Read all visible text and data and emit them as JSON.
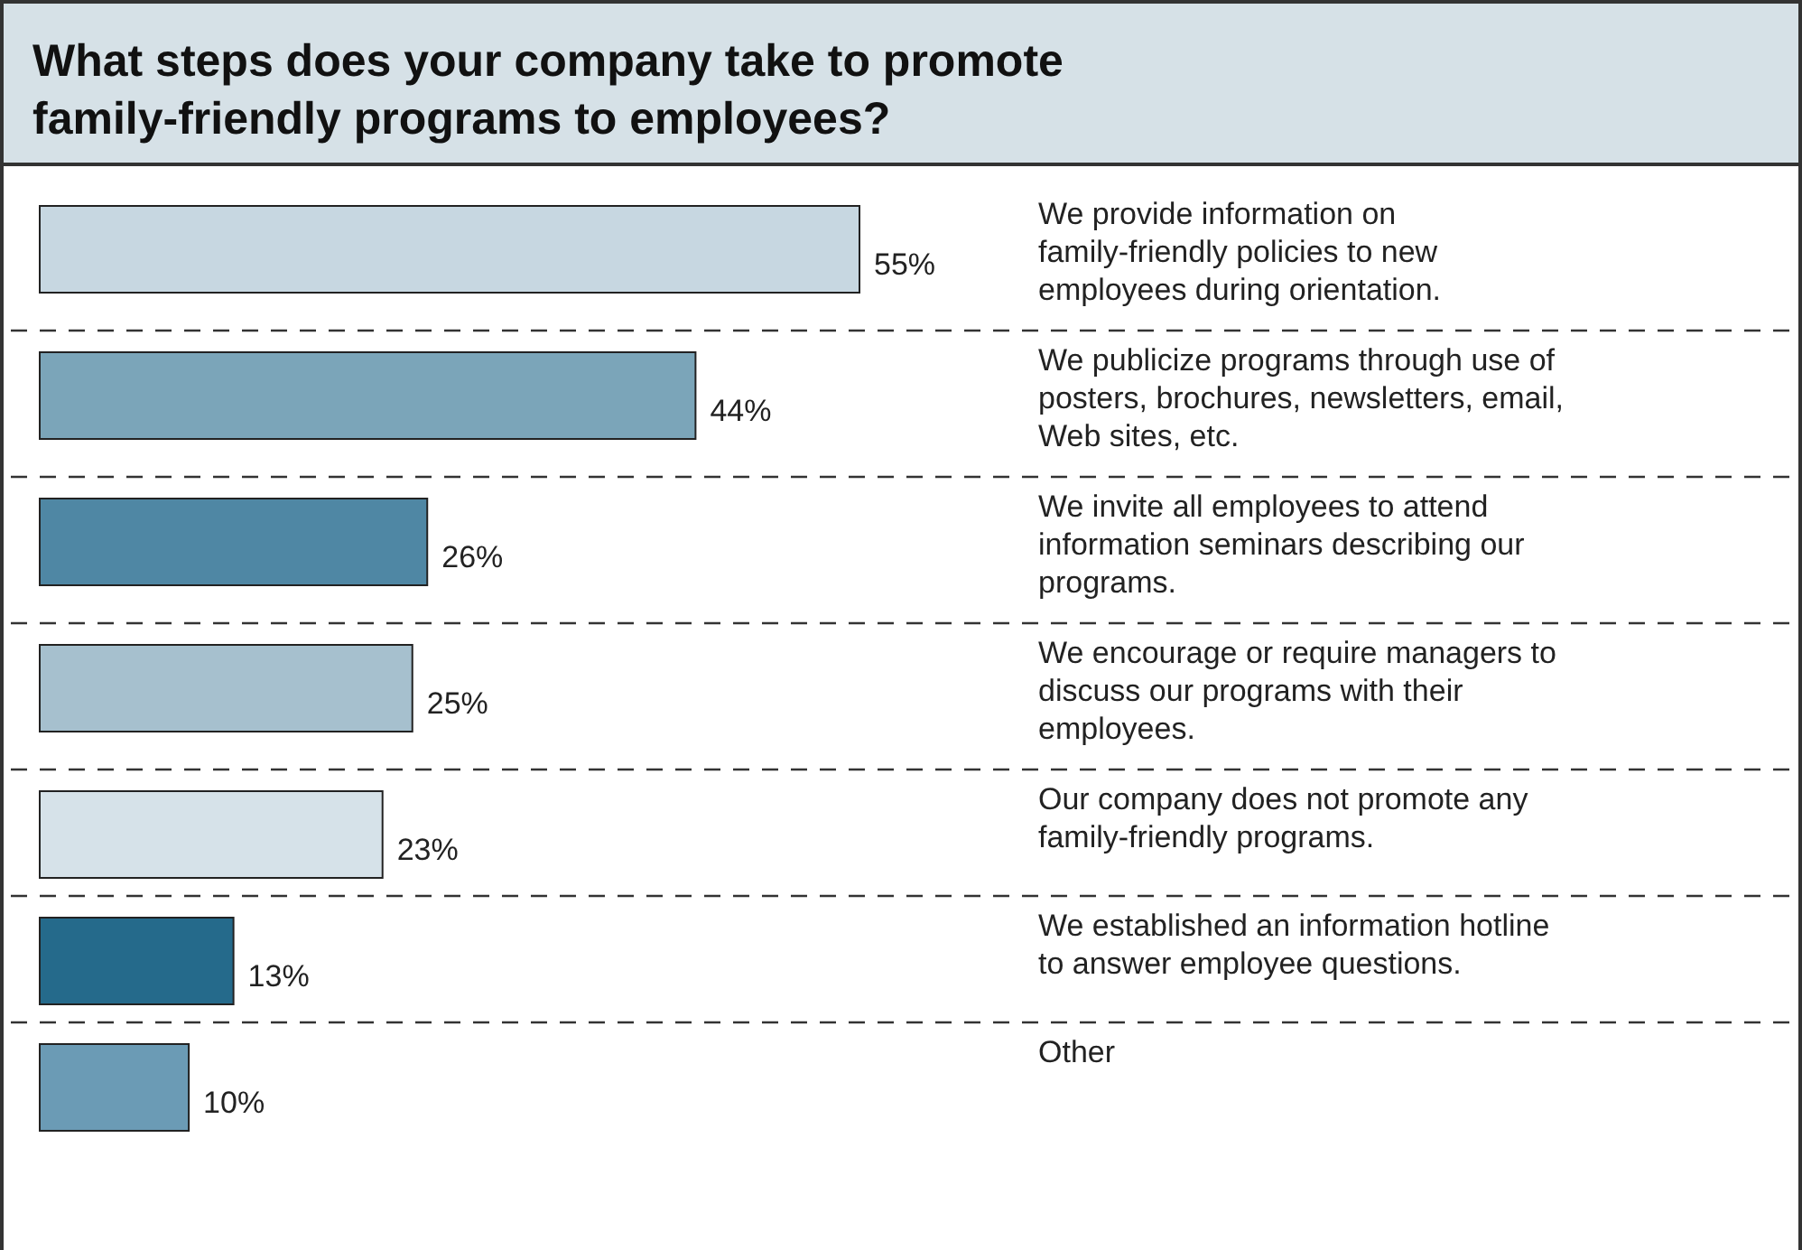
{
  "chart_data": {
    "type": "bar",
    "orientation": "horizontal",
    "title": "What steps does your company take to promote family-friendly programs to employees?",
    "categories": [
      "We provide information on family-friendly policies to new employees during orientation.",
      "We publicize programs through use of posters, brochures, newsletters, email, Web sites, etc.",
      "We invite all employees to attend information seminars describing our programs.",
      "We encourage or require managers to discuss our programs with their employees.",
      "Our company does not promote any family-friendly programs.",
      "We established an information hotline to answer employee questions.",
      "Other"
    ],
    "values": [
      55,
      44,
      26,
      25,
      23,
      13,
      10
    ],
    "value_labels": [
      "55%",
      "44%",
      "26%",
      "25%",
      "23%",
      "13%",
      "10%"
    ],
    "colors": [
      "#c7d7e1",
      "#7ba5b9",
      "#4f87a4",
      "#a6c0ce",
      "#d6e2e9",
      "#256a8b",
      "#6b9bb5"
    ],
    "xlim": [
      0,
      55
    ]
  }
}
